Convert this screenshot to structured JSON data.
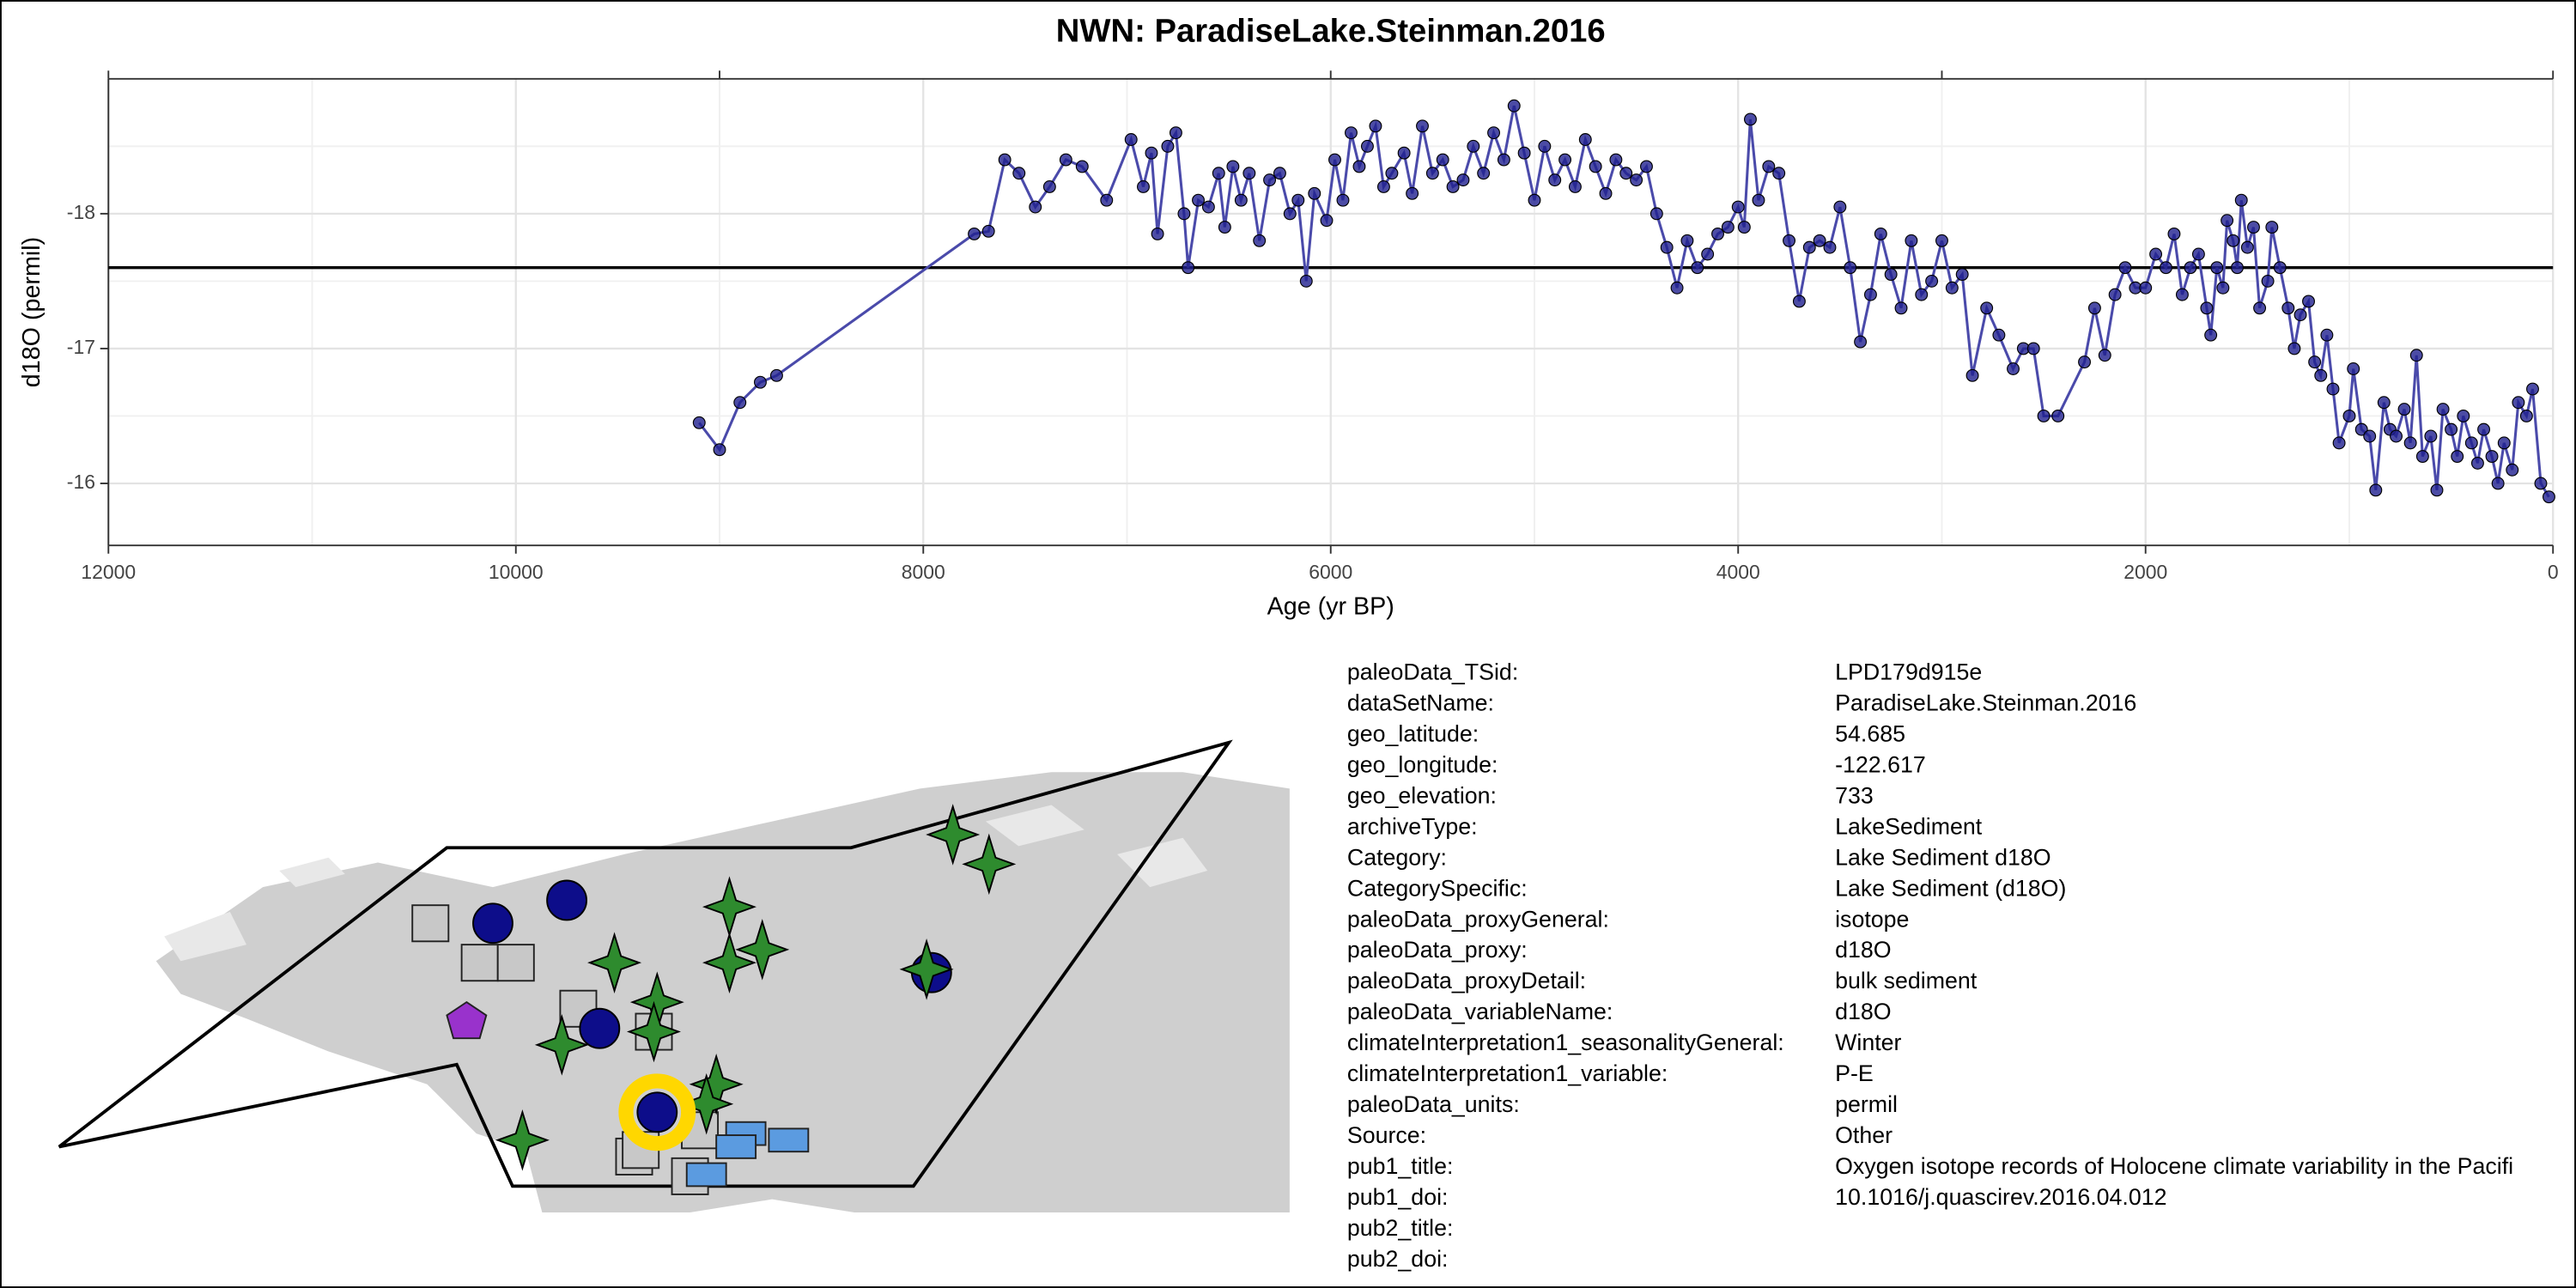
{
  "chart_data": {
    "type": "line",
    "title": "NWN: ParadiseLake.Steinman.2016",
    "xlabel": "Age (yr BP)",
    "ylabel": "d18O (permil)",
    "color": "#1f1f8f",
    "line_color": "#4a4aaa",
    "xlim": [
      12000,
      0
    ],
    "ylim": [
      -15.54,
      -19.0
    ],
    "xticks": [
      12000,
      10000,
      8000,
      6000,
      4000,
      2000,
      0
    ],
    "xgrid_minor": [
      11000,
      9000,
      7000,
      5000,
      3000,
      1000
    ],
    "top_ticks": [
      12000,
      9000,
      6000,
      3000,
      0
    ],
    "yticks": [
      -18,
      -17,
      -16
    ],
    "ygrid_minor": [
      -18.5,
      -17.5,
      -16.5
    ],
    "grid": true,
    "hline": -17.6,
    "x": [
      9100,
      9000,
      8900,
      8800,
      8720,
      7750,
      7680,
      7600,
      7530,
      7450,
      7380,
      7300,
      7220,
      7100,
      6980,
      6920,
      6880,
      6850,
      6800,
      6760,
      6720,
      6700,
      6650,
      6600,
      6550,
      6520,
      6480,
      6440,
      6400,
      6350,
      6300,
      6250,
      6200,
      6160,
      6120,
      6080,
      6020,
      5980,
      5940,
      5900,
      5860,
      5820,
      5780,
      5740,
      5700,
      5640,
      5600,
      5550,
      5500,
      5450,
      5400,
      5350,
      5300,
      5250,
      5200,
      5150,
      5100,
      5050,
      5000,
      4950,
      4900,
      4850,
      4800,
      4750,
      4700,
      4650,
      4600,
      4550,
      4500,
      4450,
      4400,
      4350,
      4300,
      4250,
      4200,
      4150,
      4100,
      4050,
      4000,
      3970,
      3940,
      3900,
      3850,
      3800,
      3750,
      3700,
      3650,
      3600,
      3550,
      3500,
      3450,
      3400,
      3350,
      3300,
      3250,
      3200,
      3150,
      3100,
      3050,
      3000,
      2950,
      2900,
      2850,
      2780,
      2720,
      2650,
      2600,
      2550,
      2500,
      2430,
      2300,
      2250,
      2200,
      2150,
      2100,
      2050,
      2000,
      1950,
      1900,
      1860,
      1820,
      1780,
      1740,
      1700,
      1680,
      1650,
      1620,
      1600,
      1570,
      1550,
      1530,
      1500,
      1470,
      1440,
      1400,
      1380,
      1340,
      1300,
      1270,
      1240,
      1200,
      1170,
      1140,
      1110,
      1080,
      1050,
      1000,
      980,
      940,
      900,
      870,
      830,
      800,
      770,
      730,
      700,
      670,
      640,
      600,
      570,
      540,
      500,
      470,
      440,
      400,
      370,
      340,
      300,
      270,
      240,
      200,
      170,
      130,
      100,
      60,
      20
    ],
    "values": [
      -16.45,
      -16.25,
      -16.6,
      -16.75,
      -16.8,
      -17.85,
      -17.87,
      -18.4,
      -18.3,
      -18.05,
      -18.2,
      -18.4,
      -18.35,
      -18.1,
      -18.55,
      -18.2,
      -18.45,
      -17.85,
      -18.5,
      -18.6,
      -18.0,
      -17.6,
      -18.1,
      -18.05,
      -18.3,
      -17.9,
      -18.35,
      -18.1,
      -18.3,
      -17.8,
      -18.25,
      -18.3,
      -18.0,
      -18.1,
      -17.5,
      -18.15,
      -17.95,
      -18.4,
      -18.1,
      -18.6,
      -18.35,
      -18.5,
      -18.65,
      -18.2,
      -18.3,
      -18.45,
      -18.15,
      -18.65,
      -18.3,
      -18.4,
      -18.2,
      -18.25,
      -18.5,
      -18.3,
      -18.6,
      -18.4,
      -18.8,
      -18.45,
      -18.1,
      -18.5,
      -18.25,
      -18.4,
      -18.2,
      -18.55,
      -18.35,
      -18.15,
      -18.4,
      -18.3,
      -18.25,
      -18.35,
      -18.0,
      -17.75,
      -17.45,
      -17.8,
      -17.6,
      -17.7,
      -17.85,
      -17.9,
      -18.05,
      -17.9,
      -18.7,
      -18.1,
      -18.35,
      -18.3,
      -17.8,
      -17.35,
      -17.75,
      -17.8,
      -17.75,
      -18.05,
      -17.6,
      -17.05,
      -17.4,
      -17.85,
      -17.55,
      -17.3,
      -17.8,
      -17.4,
      -17.5,
      -17.8,
      -17.45,
      -17.55,
      -16.8,
      -17.3,
      -17.1,
      -16.85,
      -17.0,
      -17.0,
      -16.5,
      -16.5,
      -16.9,
      -17.3,
      -16.95,
      -17.4,
      -17.6,
      -17.45,
      -17.45,
      -17.7,
      -17.6,
      -17.85,
      -17.4,
      -17.6,
      -17.7,
      -17.3,
      -17.1,
      -17.6,
      -17.45,
      -17.95,
      -17.8,
      -17.6,
      -18.1,
      -17.75,
      -17.9,
      -17.3,
      -17.5,
      -17.9,
      -17.6,
      -17.3,
      -17.0,
      -17.25,
      -17.35,
      -16.9,
      -16.8,
      -17.1,
      -16.7,
      -16.3,
      -16.5,
      -16.85,
      -16.4,
      -16.35,
      -15.95,
      -16.6,
      -16.4,
      -16.35,
      -16.55,
      -16.3,
      -16.95,
      -16.2,
      -16.35,
      -15.95,
      -16.55,
      -16.4,
      -16.2,
      -16.5,
      -16.3,
      -16.15,
      -16.4,
      -16.2,
      -16.0,
      -16.3,
      -16.1,
      -16.6,
      -16.5,
      -16.7,
      -16.0,
      -15.9
    ]
  },
  "metadata": {
    "rows": [
      [
        "paleoData_TSid:",
        "LPD179d915e"
      ],
      [
        "dataSetName:",
        "ParadiseLake.Steinman.2016"
      ],
      [
        "geo_latitude:",
        "54.685"
      ],
      [
        "geo_longitude:",
        "-122.617"
      ],
      [
        "geo_elevation:",
        "733"
      ],
      [
        "archiveType:",
        "LakeSediment"
      ],
      [
        "Category:",
        "Lake Sediment d18O"
      ],
      [
        "CategorySpecific:",
        "Lake Sediment (d18O)"
      ],
      [
        "paleoData_proxyGeneral:",
        "isotope"
      ],
      [
        "paleoData_proxy:",
        "d18O"
      ],
      [
        "paleoData_proxyDetail:",
        "bulk sediment"
      ],
      [
        "paleoData_variableName:",
        "d18O"
      ],
      [
        "climateInterpretation1_seasonalityGeneral:",
        "Winter"
      ],
      [
        "climateInterpretation1_variable:",
        "P-E"
      ],
      [
        "paleoData_units:",
        "permil"
      ],
      [
        "Source:",
        "Other"
      ],
      [
        "pub1_title:",
        "Oxygen isotope records of Holocene climate variability in the Pacifi"
      ],
      [
        "pub1_doi:",
        "10.1016/j.quascirev.2016.04.012"
      ],
      [
        "pub2_title:"
      ],
      [
        "pub2_doi:"
      ]
    ]
  }
}
